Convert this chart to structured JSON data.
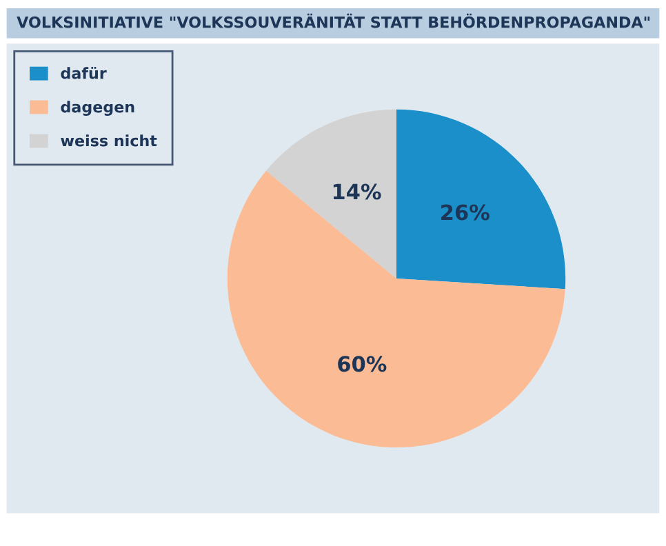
{
  "chart_data": {
    "type": "pie",
    "title": "VOLKSINITIATIVE \"VOLKSSOUVERÄNITÄT STATT BEHÖRDENPROPAGANDA\"",
    "categories": [
      "dafür",
      "dagegen",
      "weiss nicht"
    ],
    "values": [
      26,
      60,
      14
    ],
    "colors": [
      "#1a8fc9",
      "#fbbb94",
      "#d3d3d3"
    ],
    "value_labels": [
      "26%",
      "60%",
      "14%"
    ],
    "legend": "top left"
  }
}
